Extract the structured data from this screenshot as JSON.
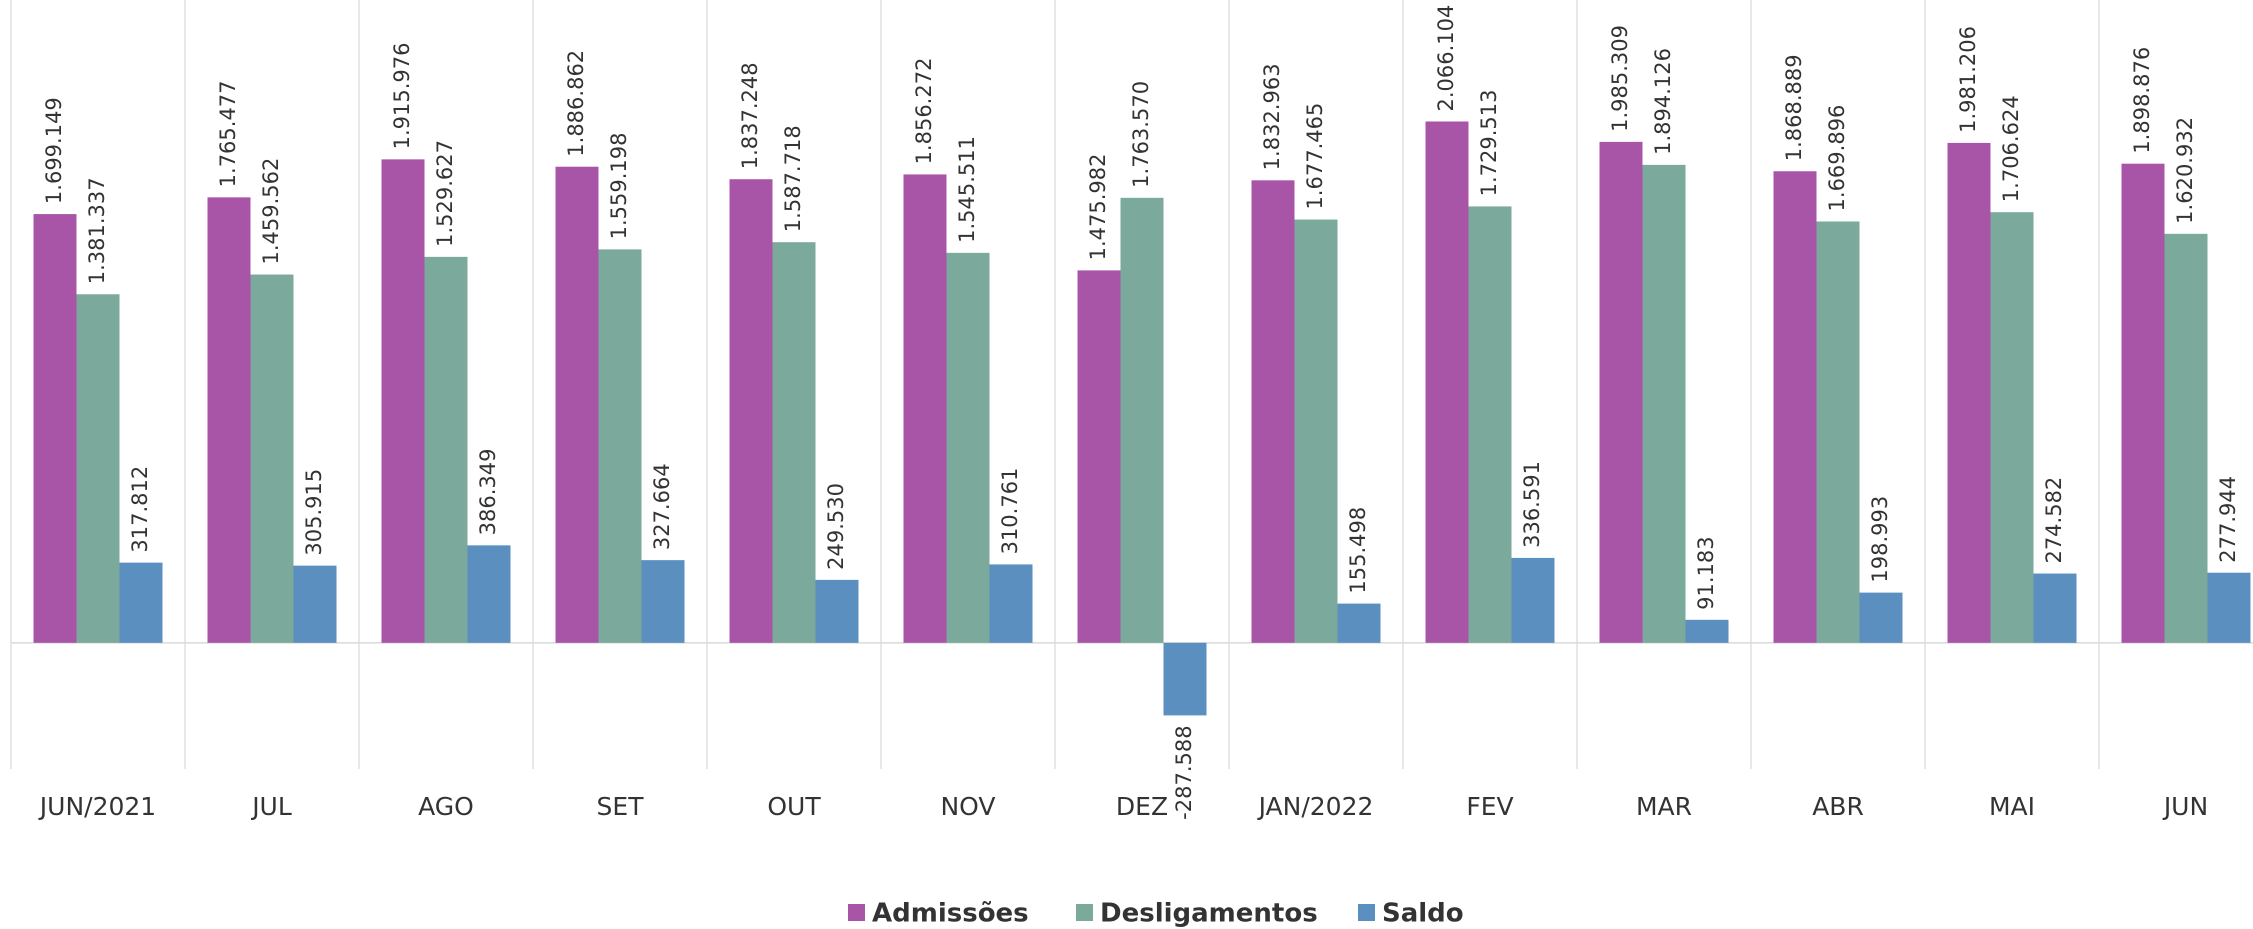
{
  "chart_data": {
    "type": "bar",
    "categories": [
      "JUN/2021",
      "JUL",
      "AGO",
      "SET",
      "OUT",
      "NOV",
      "DEZ",
      "JAN/2022",
      "FEV",
      "MAR",
      "ABR",
      "MAI",
      "JUN"
    ],
    "series": [
      {
        "name": "Admissões",
        "color": "#a855a8",
        "values": [
          1699149,
          1765477,
          1915976,
          1886862,
          1837248,
          1856272,
          1475982,
          1832963,
          2066104,
          1985309,
          1868889,
          1981206,
          1898876
        ],
        "value_labels": [
          "1.699.149",
          "1.765.477",
          "1.915.976",
          "1.886.862",
          "1.837.248",
          "1.856.272",
          "1.475.982",
          "1.832.963",
          "2.066.104",
          "1.985.309",
          "1.868.889",
          "1.981.206",
          "1.898.876"
        ]
      },
      {
        "name": "Desligamentos",
        "color": "#7ba99c",
        "values": [
          1381337,
          1459562,
          1529627,
          1559198,
          1587718,
          1545511,
          1763570,
          1677465,
          1729513,
          1894126,
          1669896,
          1706624,
          1620932
        ],
        "value_labels": [
          "1.381.337",
          "1.459.562",
          "1.529.627",
          "1.559.198",
          "1.587.718",
          "1.545.511",
          "1.763.570",
          "1.677.465",
          "1.729.513",
          "1.894.126",
          "1.669.896",
          "1.706.624",
          "1.620.932"
        ]
      },
      {
        "name": "Saldo",
        "color": "#5a8fc0",
        "values": [
          317812,
          305915,
          386349,
          327664,
          249530,
          310761,
          -287588,
          155498,
          336591,
          91183,
          198993,
          274582,
          277944
        ],
        "value_labels": [
          "317.812",
          "305.915",
          "386.349",
          "327.664",
          "249.530",
          "310.761",
          "-287.588",
          "155.498",
          "336.591",
          "91.183",
          "198.993",
          "274.582",
          "277.944"
        ]
      }
    ],
    "ylim": [
      -500000,
      2500000
    ]
  }
}
